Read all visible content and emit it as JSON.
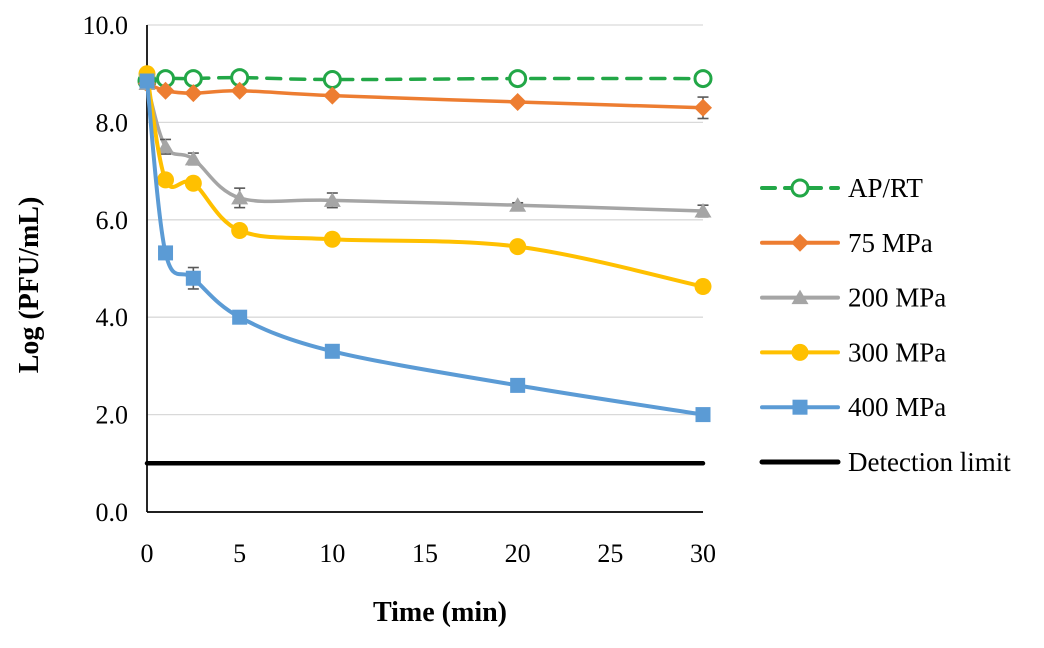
{
  "chart_data": {
    "type": "line",
    "title": "",
    "xlabel": "Time (min)",
    "ylabel": "Log (PFU/mL)",
    "xlim": [
      0,
      30
    ],
    "ylim": [
      0,
      10
    ],
    "xticks": [
      "0",
      "5",
      "10",
      "15",
      "20",
      "25",
      "30"
    ],
    "xtick_values": [
      0,
      5,
      10,
      15,
      20,
      25,
      30
    ],
    "yticks": [
      "0.0",
      "2.0",
      "4.0",
      "6.0",
      "8.0",
      "10.0"
    ],
    "ytick_values": [
      0,
      2,
      4,
      6,
      8,
      10
    ],
    "grid": "horizontal",
    "gridline_color": "#D9D9D9",
    "axis_color": "#000000",
    "error_bar_color": "#595959",
    "legend_position": "right",
    "x": [
      0,
      1,
      2.5,
      5,
      10,
      20,
      30
    ],
    "series": [
      {
        "name": "AP/RT",
        "color": "#22A747",
        "marker": "open-circle",
        "line": "dashed",
        "line_width": 3.5,
        "values": [
          8.85,
          8.9,
          8.9,
          8.92,
          8.88,
          8.9,
          8.9
        ],
        "errors": [
          0,
          0.07,
          0.1,
          0.08,
          0.1,
          0.08,
          0.12
        ]
      },
      {
        "name": "75 MPa",
        "color": "#ED7D31",
        "marker": "diamond",
        "line": "solid",
        "line_width": 3.5,
        "values": [
          8.8,
          8.65,
          8.6,
          8.65,
          8.55,
          8.42,
          8.3
        ],
        "errors": [
          0,
          0,
          0,
          0,
          0,
          0,
          0.22
        ]
      },
      {
        "name": "200 MPa",
        "color": "#A5A5A5",
        "marker": "triangle",
        "line": "solid",
        "line_width": 3.5,
        "values": [
          8.8,
          7.5,
          7.25,
          6.45,
          6.4,
          6.3,
          6.18
        ],
        "errors": [
          0,
          0.15,
          0.12,
          0.2,
          0.15,
          0.05,
          0.12
        ]
      },
      {
        "name": "300 MPa",
        "color": "#FFC000",
        "marker": "circle",
        "line": "solid",
        "line_width": 4,
        "values": [
          9.0,
          6.82,
          6.75,
          5.78,
          5.6,
          5.45,
          4.63
        ],
        "errors": [
          0,
          0.08,
          0.06,
          0.06,
          0.1,
          0.05,
          0.12
        ]
      },
      {
        "name": "400 MPa",
        "color": "#5B9BD5",
        "marker": "square",
        "line": "solid",
        "line_width": 4,
        "values": [
          8.85,
          5.32,
          4.8,
          4.0,
          3.3,
          2.6,
          2.0
        ],
        "errors": [
          0,
          0.06,
          0.22,
          0.07,
          0,
          0,
          0
        ]
      },
      {
        "name": "Detection limit",
        "color": "#000000",
        "marker": "none",
        "line": "solid",
        "line_width": 4.5,
        "values": [
          1.0,
          1.0,
          1.0,
          1.0,
          1.0,
          1.0,
          1.0
        ],
        "errors": [
          0,
          0,
          0,
          0,
          0,
          0,
          0
        ]
      }
    ]
  }
}
